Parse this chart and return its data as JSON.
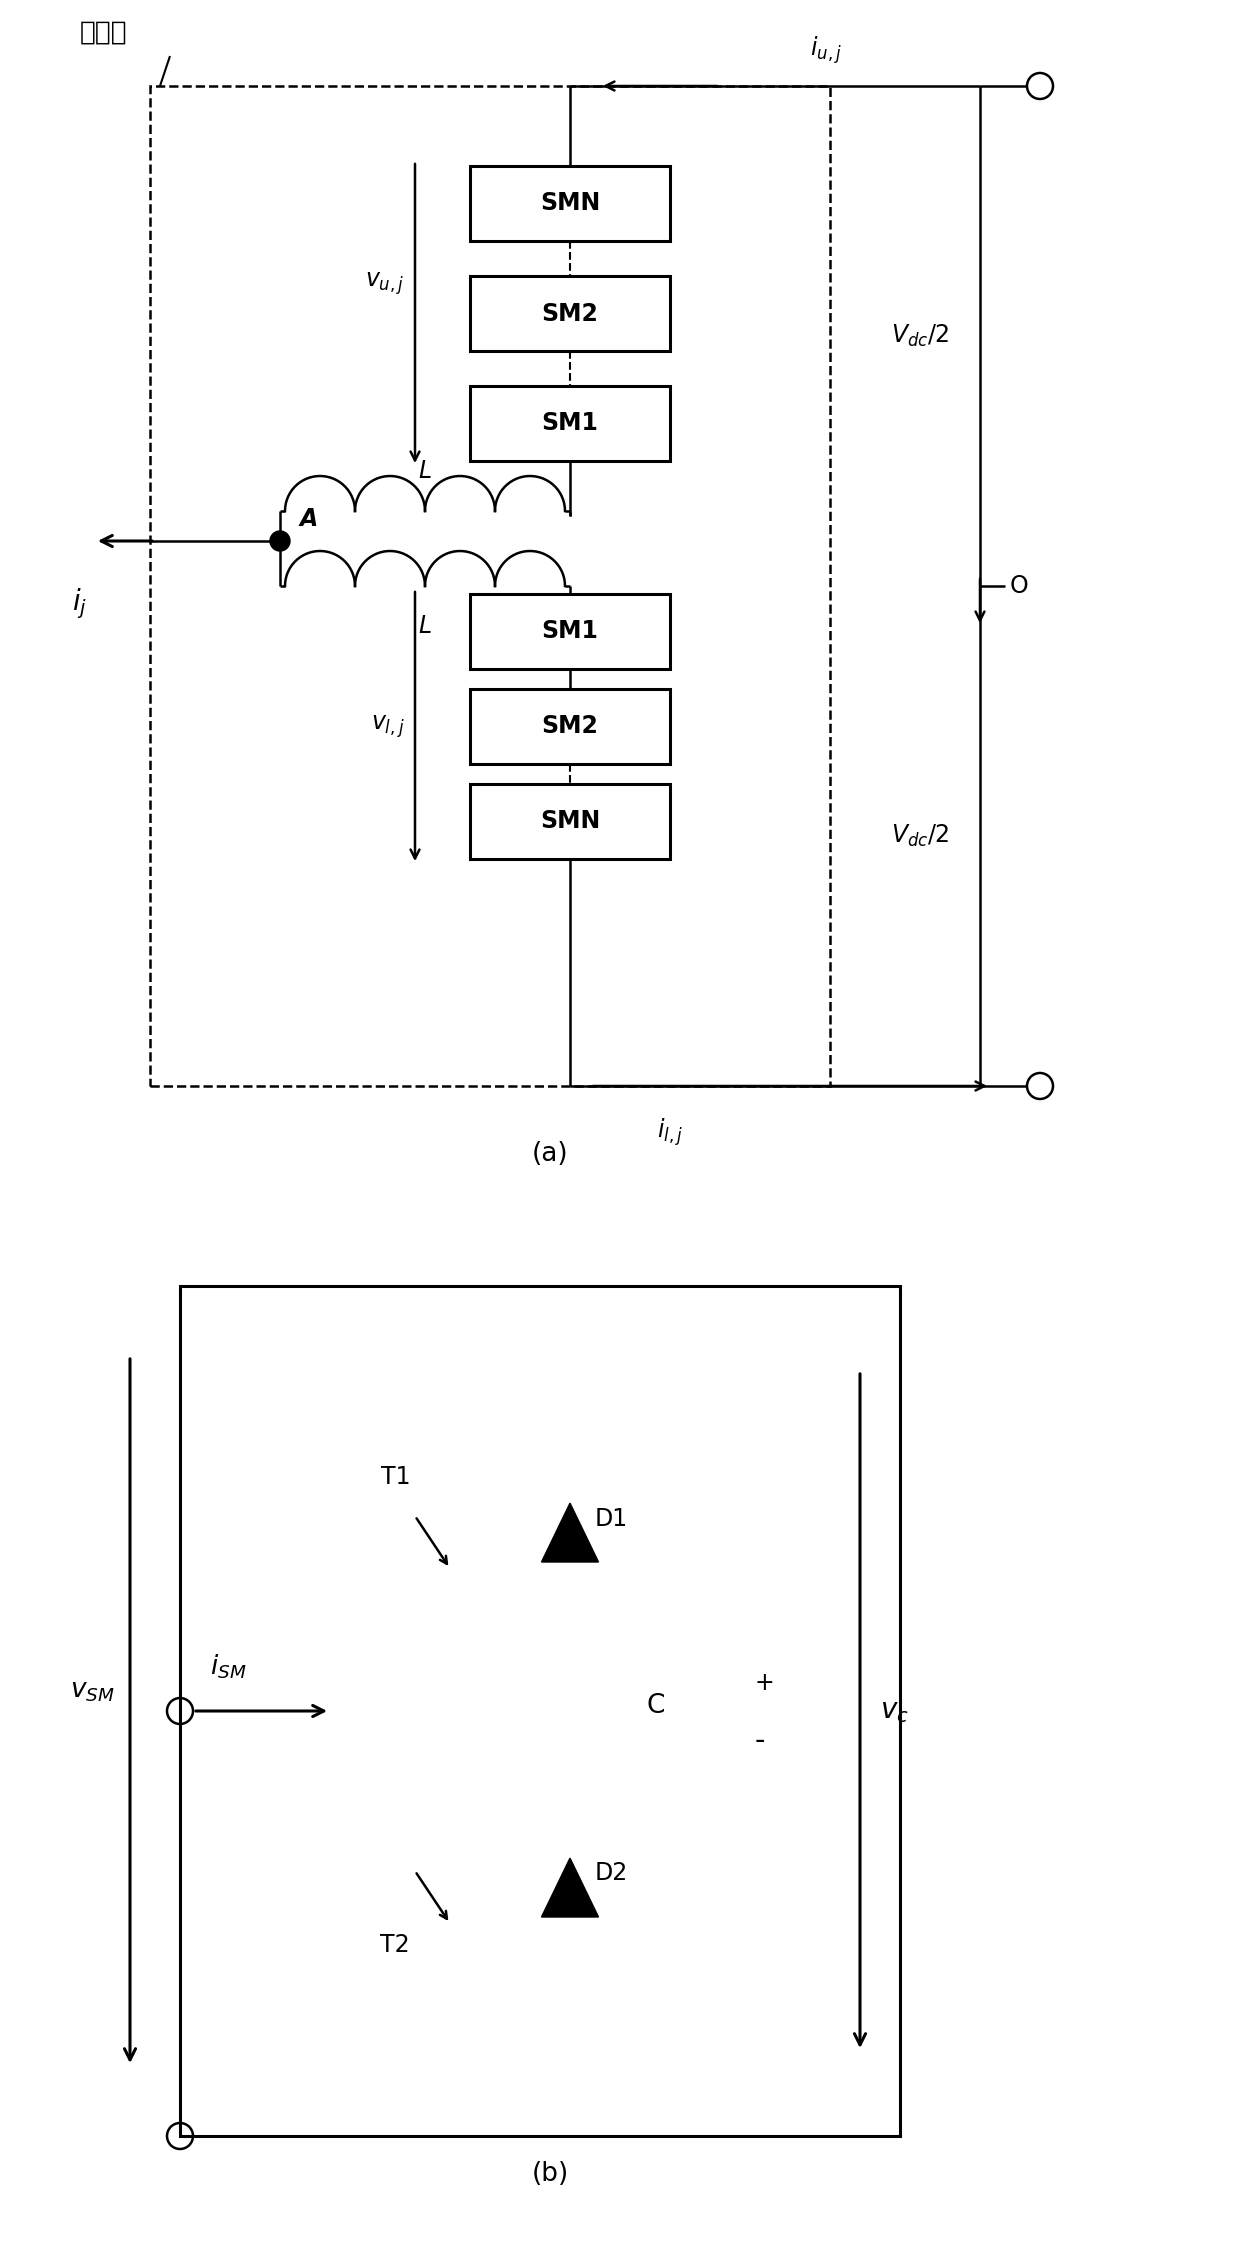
{
  "fig_width": 12.4,
  "fig_height": 22.66,
  "background_color": "#ffffff",
  "title_a": "(a)",
  "title_b": "(b)",
  "label_phase_unit": "相单元",
  "label_SMN": "SMN",
  "label_SM2": "SM2",
  "label_SM1": "SM1",
  "label_L": "L",
  "label_A": "A",
  "label_O": "O",
  "label_vuj": "$v_{u,j}$",
  "label_vlj": "$v_{l,j}$",
  "label_iuj": "$i_{u,j}$",
  "label_ilj": "$i_{l,j}$",
  "label_ij": "$i_{j}$",
  "label_Vdc_2_top": "$V_{dc}/2$",
  "label_Vdc_2_bot": "$V_{dc}/2$",
  "label_T1": "T1",
  "label_T2": "T2",
  "label_D1": "D1",
  "label_D2": "D2",
  "label_C": "C",
  "label_iSM": "$i_{SM}$",
  "label_vSM": "$v_{SM}$",
  "label_vc": "$v_c$"
}
